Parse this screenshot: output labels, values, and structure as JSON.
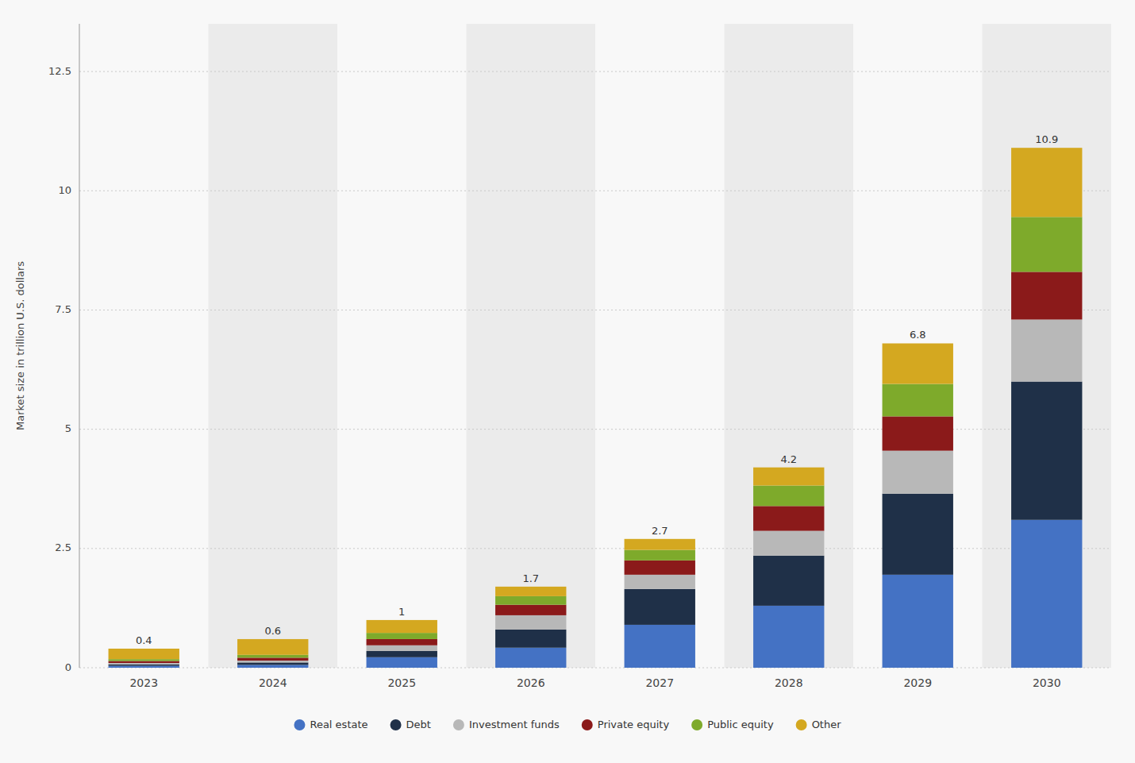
{
  "chart_data": {
    "type": "bar",
    "stacked": true,
    "y_label": "Market size in trillion U.S. dollars",
    "categories": [
      "2023",
      "2024",
      "2025",
      "2026",
      "2027",
      "2028",
      "2029",
      "2030"
    ],
    "series": [
      {
        "name": "Real estate",
        "color": "#4472C4",
        "values": [
          0.04,
          0.06,
          0.22,
          0.42,
          0.9,
          1.3,
          1.95,
          3.1
        ]
      },
      {
        "name": "Debt",
        "color": "#1F3048",
        "values": [
          0.03,
          0.05,
          0.13,
          0.38,
          0.75,
          1.05,
          1.7,
          2.9
        ]
      },
      {
        "name": "Investment funds",
        "color": "#B8B8B8",
        "values": [
          0.03,
          0.04,
          0.12,
          0.3,
          0.3,
          0.52,
          0.9,
          1.3
        ]
      },
      {
        "name": "Private equity",
        "color": "#8B1A1A",
        "values": [
          0.04,
          0.06,
          0.13,
          0.22,
          0.3,
          0.52,
          0.72,
          1.0
        ]
      },
      {
        "name": "Public equity",
        "color": "#7EAA2B",
        "values": [
          0.04,
          0.06,
          0.13,
          0.18,
          0.22,
          0.43,
          0.68,
          1.15
        ]
      },
      {
        "name": "Other",
        "color": "#D4A820",
        "values": [
          0.22,
          0.33,
          0.27,
          0.2,
          0.23,
          0.38,
          0.85,
          1.45
        ]
      }
    ],
    "totals": [
      0.4,
      0.6,
      1,
      1.7,
      2.7,
      4.2,
      6.8,
      10.9
    ],
    "ylim": [
      0,
      13.5
    ],
    "yticks": [
      0,
      2.5,
      5,
      7.5,
      10,
      12.5
    ],
    "grid": true,
    "legend": "bottom"
  }
}
